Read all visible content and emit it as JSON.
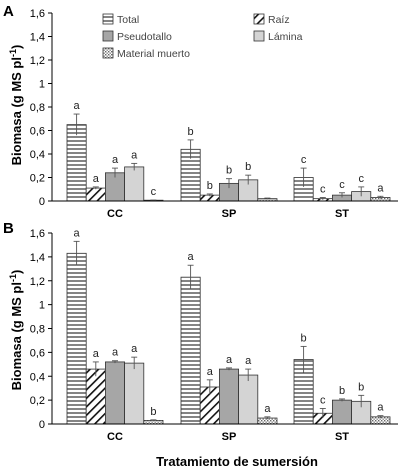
{
  "colors": {
    "total": "#ffffff",
    "raiz": "#ffffff",
    "pseudotallo": "#a6a6a6",
    "lamina": "#d4d4d4",
    "material_muerto": "#ffffff",
    "axis": "#000000",
    "error_bar": "#555555"
  },
  "figure": {
    "xlabel": "Tratamiento de sumersión"
  },
  "chart_data": [
    {
      "type": "bar",
      "panel_label": "A",
      "categories": [
        "CC",
        "SP",
        "ST"
      ],
      "ylabel": "Biomasa (g MS pl",
      "ylabel_sup": "-1",
      "ylabel_end": ")",
      "ylim": [
        0,
        1.6
      ],
      "yticks": [
        0,
        0.2,
        0.4,
        0.6,
        0.8,
        1,
        1.2,
        1.4,
        1.6
      ],
      "ytick_labels": [
        "0",
        "0,2",
        "0,4",
        "0,6",
        "0,8",
        "1",
        "1,2",
        "1,4",
        "1,6"
      ],
      "grid": false,
      "legend": {
        "position": "top",
        "columns": 2
      },
      "series": [
        {
          "name": "Total",
          "pattern": "hlines",
          "values": [
            0.65,
            0.44,
            0.2
          ],
          "errors": [
            0.09,
            0.08,
            0.08
          ],
          "letters": [
            "a",
            "b",
            "c"
          ]
        },
        {
          "name": "Raíz",
          "pattern": "diag",
          "values": [
            0.11,
            0.05,
            0.02
          ],
          "errors": [
            0.01,
            0.01,
            0.01
          ],
          "letters": [
            "a",
            "b",
            "c"
          ]
        },
        {
          "name": "Pseudotallo",
          "pattern": "solid-dark",
          "values": [
            0.24,
            0.15,
            0.05
          ],
          "errors": [
            0.04,
            0.04,
            0.02
          ],
          "letters": [
            "a",
            "b",
            "c"
          ]
        },
        {
          "name": "Lámina",
          "pattern": "solid-light",
          "values": [
            0.29,
            0.18,
            0.08
          ],
          "errors": [
            0.03,
            0.04,
            0.04
          ],
          "letters": [
            "a",
            "b",
            "c"
          ]
        },
        {
          "name": "Material muerto",
          "pattern": "dots",
          "values": [
            0.005,
            0.02,
            0.03
          ],
          "errors": [
            0.003,
            0.005,
            0.01
          ],
          "letters": [
            "c",
            "",
            "a"
          ]
        }
      ]
    },
    {
      "type": "bar",
      "panel_label": "B",
      "categories": [
        "CC",
        "SP",
        "ST"
      ],
      "ylabel": "Biomasa (g MS pl",
      "ylabel_sup": "-1",
      "ylabel_end": ")",
      "ylim": [
        0,
        1.6
      ],
      "yticks": [
        0,
        0.2,
        0.4,
        0.6,
        0.8,
        1,
        1.2,
        1.4,
        1.6
      ],
      "ytick_labels": [
        "0",
        "0,2",
        "0,4",
        "0,6",
        "0,8",
        "1",
        "1,2",
        "1,4",
        "1,6"
      ],
      "grid": false,
      "series": [
        {
          "name": "Total",
          "pattern": "hlines",
          "values": [
            1.43,
            1.23,
            0.54
          ],
          "errors": [
            0.1,
            0.1,
            0.11
          ],
          "letters": [
            "a",
            "a",
            "b"
          ]
        },
        {
          "name": "Raíz",
          "pattern": "diag",
          "values": [
            0.46,
            0.31,
            0.09
          ],
          "errors": [
            0.06,
            0.06,
            0.04
          ],
          "letters": [
            "a",
            "a",
            "c"
          ]
        },
        {
          "name": "Pseudotallo",
          "pattern": "solid-dark",
          "values": [
            0.52,
            0.46,
            0.2
          ],
          "errors": [
            0.01,
            0.01,
            0.01
          ],
          "letters": [
            "a",
            "a",
            "b"
          ]
        },
        {
          "name": "Lámina",
          "pattern": "solid-light",
          "values": [
            0.51,
            0.41,
            0.19
          ],
          "errors": [
            0.05,
            0.05,
            0.05
          ],
          "letters": [
            "a",
            "a",
            "b"
          ]
        },
        {
          "name": "Material muerto",
          "pattern": "dots",
          "values": [
            0.03,
            0.05,
            0.06
          ],
          "errors": [
            0.005,
            0.01,
            0.01
          ],
          "letters": [
            "b",
            "a",
            "a"
          ]
        }
      ]
    }
  ]
}
